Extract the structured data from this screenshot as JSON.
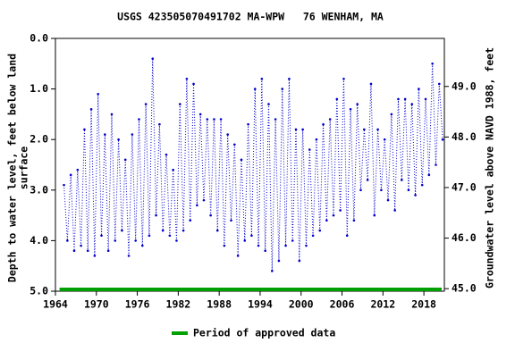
{
  "chart_data": {
    "type": "line",
    "title": "USGS 423505070491702 MA-WPW   76 WENHAM, MA",
    "ylabel_lines": [
      "Depth to water level, feet below land",
      "surface"
    ],
    "y2label": "Groundwater level above NAVD 1988, feet",
    "xlim": [
      1964,
      2021
    ],
    "xticks": [
      1964,
      1970,
      1976,
      1982,
      1988,
      1994,
      2000,
      2006,
      2012,
      2018
    ],
    "ylim": [
      5.0,
      0.0
    ],
    "yticks": [
      {
        "value": 0,
        "label": "0.0"
      },
      {
        "value": 1,
        "label": "1.0"
      },
      {
        "value": 2,
        "label": "2.0"
      },
      {
        "value": 3,
        "label": "3.0"
      },
      {
        "value": 4,
        "label": "4.0"
      },
      {
        "value": 5,
        "label": "5.0"
      }
    ],
    "y2lim": [
      44.95,
      49.95
    ],
    "y2ticks": [
      {
        "value": 45,
        "label": "45.0"
      },
      {
        "value": 46,
        "label": "46.0"
      },
      {
        "value": 47,
        "label": "47.0"
      },
      {
        "value": 48,
        "label": "48.0"
      },
      {
        "value": 49,
        "label": "49.0"
      }
    ],
    "series": [
      {
        "name": "Depth to water level",
        "color": "#0000cc",
        "x": [
          1965.25,
          1965.75,
          1966.25,
          1966.75,
          1967.25,
          1967.75,
          1968.25,
          1968.75,
          1969.25,
          1969.75,
          1970.25,
          1970.75,
          1971.25,
          1971.75,
          1972.25,
          1972.75,
          1973.25,
          1973.75,
          1974.25,
          1974.75,
          1975.25,
          1975.75,
          1976.25,
          1976.75,
          1977.25,
          1977.75,
          1978.25,
          1978.75,
          1979.25,
          1979.75,
          1980.25,
          1980.75,
          1981.25,
          1981.75,
          1982.25,
          1982.75,
          1983.25,
          1983.75,
          1984.25,
          1984.75,
          1985.25,
          1985.75,
          1986.25,
          1986.75,
          1987.25,
          1987.75,
          1988.25,
          1988.75,
          1989.25,
          1989.75,
          1990.25,
          1990.75,
          1991.25,
          1991.75,
          1992.25,
          1992.75,
          1993.25,
          1993.75,
          1994.25,
          1994.75,
          1995.25,
          1995.75,
          1996.25,
          1996.75,
          1997.25,
          1997.75,
          1998.25,
          1998.75,
          1999.25,
          1999.75,
          2000.25,
          2000.75,
          2001.25,
          2001.75,
          2002.25,
          2002.75,
          2003.25,
          2003.75,
          2004.25,
          2004.75,
          2005.25,
          2005.75,
          2006.25,
          2006.75,
          2007.25,
          2007.75,
          2008.25,
          2008.75,
          2009.25,
          2009.75,
          2010.25,
          2010.75,
          2011.25,
          2011.75,
          2012.25,
          2012.75,
          2013.25,
          2013.75,
          2014.25,
          2014.75,
          2015.25,
          2015.75,
          2016.25,
          2016.75,
          2017.25,
          2017.75,
          2018.25,
          2018.75,
          2019.25,
          2019.75,
          2020.25,
          2020.75
        ],
        "values": [
          2.9,
          4.0,
          2.7,
          4.2,
          2.6,
          4.1,
          1.8,
          4.2,
          1.4,
          4.3,
          1.1,
          3.9,
          1.9,
          4.2,
          1.5,
          4.0,
          2.0,
          3.8,
          2.4,
          4.3,
          1.9,
          4.0,
          1.6,
          4.1,
          1.3,
          3.9,
          0.4,
          3.5,
          1.7,
          3.8,
          2.3,
          3.9,
          2.6,
          4.0,
          1.3,
          3.8,
          0.8,
          3.6,
          0.9,
          3.3,
          1.5,
          3.2,
          1.6,
          3.5,
          1.6,
          3.8,
          1.6,
          4.1,
          1.9,
          3.6,
          2.1,
          4.3,
          2.4,
          4.0,
          1.7,
          3.9,
          1.0,
          4.1,
          0.8,
          4.2,
          1.3,
          4.6,
          1.6,
          4.4,
          1.0,
          4.1,
          0.8,
          4.0,
          1.8,
          4.4,
          1.8,
          4.1,
          2.2,
          3.9,
          2.0,
          3.8,
          1.7,
          3.6,
          1.6,
          3.5,
          1.2,
          3.4,
          0.8,
          3.9,
          1.4,
          3.6,
          1.3,
          3.0,
          1.8,
          2.8,
          0.9,
          3.5,
          1.8,
          3.0,
          2.0,
          3.2,
          1.5,
          3.4,
          1.2,
          2.8,
          1.2,
          3.0,
          1.3,
          3.1,
          1.0,
          2.9,
          1.2,
          2.7,
          0.5,
          2.5,
          0.9,
          2.0
        ]
      }
    ],
    "approved_period": {
      "name": "Period of approved data",
      "color": "#00a000",
      "x": [
        1964.6,
        2020.6
      ]
    }
  }
}
